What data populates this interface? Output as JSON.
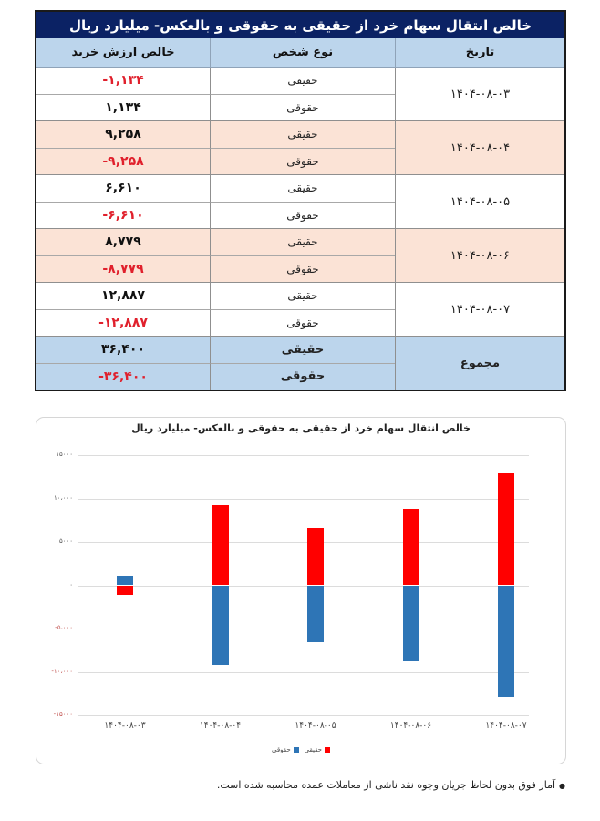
{
  "table": {
    "title": "خالص انتقال سهام خرد از حقیقی به حقوقی و بالعکس- میلیارد ریال",
    "headers": {
      "date": "تاریخ",
      "person_type": "نوع شخص",
      "net_value": "خالص ارزش خرید"
    },
    "groups": [
      {
        "date": "۱۴۰۴-۰۸-۰۳",
        "rows": [
          {
            "type": "حقیقی",
            "value": "-۱,۱۳۴",
            "negative": true
          },
          {
            "type": "حقوقی",
            "value": "۱,۱۳۴",
            "negative": false
          }
        ]
      },
      {
        "date": "۱۴۰۴-۰۸-۰۴",
        "rows": [
          {
            "type": "حقیقی",
            "value": "۹,۲۵۸",
            "negative": false
          },
          {
            "type": "حقوقی",
            "value": "-۹,۲۵۸",
            "negative": true
          }
        ]
      },
      {
        "date": "۱۴۰۴-۰۸-۰۵",
        "rows": [
          {
            "type": "حقیقی",
            "value": "۶,۶۱۰",
            "negative": false
          },
          {
            "type": "حقوقی",
            "value": "-۶,۶۱۰",
            "negative": true
          }
        ]
      },
      {
        "date": "۱۴۰۴-۰۸-۰۶",
        "rows": [
          {
            "type": "حقیقی",
            "value": "۸,۷۷۹",
            "negative": false
          },
          {
            "type": "حقوقی",
            "value": "-۸,۷۷۹",
            "negative": true
          }
        ]
      },
      {
        "date": "۱۴۰۴-۰۸-۰۷",
        "rows": [
          {
            "type": "حقیقی",
            "value": "۱۲,۸۸۷",
            "negative": false
          },
          {
            "type": "حقوقی",
            "value": "-۱۲,۸۸۷",
            "negative": true
          }
        ]
      },
      {
        "date": "مجموع",
        "rows": [
          {
            "type": "حقیقی",
            "value": "۳۶,۴۰۰",
            "negative": false
          },
          {
            "type": "حقوقی",
            "value": "-۳۶,۴۰۰",
            "negative": true
          }
        ]
      }
    ]
  },
  "colors": {
    "title_bg": "#0b2264",
    "header_bg": "#bcd5ec",
    "peach_row": "#fbe3d6",
    "negative_text": "#e0202c",
    "series_haghighi": "#ff0000",
    "series_hoghooghi": "#2e75b6"
  },
  "chart_data": {
    "type": "bar",
    "stacked": true,
    "title": "خالص انتقال سهام خرد از حقیقی به حقوقی و بالعکس- میلیارد ریال",
    "xlabel": "",
    "ylabel": "",
    "categories": [
      "۱۴۰۴-۰۸-۰۳",
      "۱۴۰۴-۰۸-۰۴",
      "۱۴۰۴-۰۸-۰۵",
      "۱۴۰۴-۰۸-۰۶",
      "۱۴۰۴-۰۸-۰۷"
    ],
    "series": [
      {
        "name": "حقیقی",
        "color": "#ff0000",
        "values": [
          -1134,
          9258,
          6610,
          8779,
          12887
        ]
      },
      {
        "name": "حقوقی",
        "color": "#2e75b6",
        "values": [
          1134,
          -9258,
          -6610,
          -8779,
          -12887
        ]
      }
    ],
    "ylim": [
      -15000,
      15000
    ],
    "yticks": [
      15000,
      10000,
      5000,
      0,
      -5000,
      -10000,
      -15000
    ],
    "ytick_labels": [
      "۱۵۰۰۰",
      "۱۰،۰۰۰",
      "۵۰۰۰",
      "۰",
      "-۵،۰۰۰",
      "-۱۰،۰۰۰",
      "-۱۵۰۰۰"
    ],
    "grid": true,
    "legend_position": "bottom",
    "legend": [
      "حقیقی",
      "حقوقی"
    ]
  },
  "footnote": "آمار فوق بدون لحاظ جریان وجوه نقد ناشی از معاملات عمده محاسبه شده است."
}
